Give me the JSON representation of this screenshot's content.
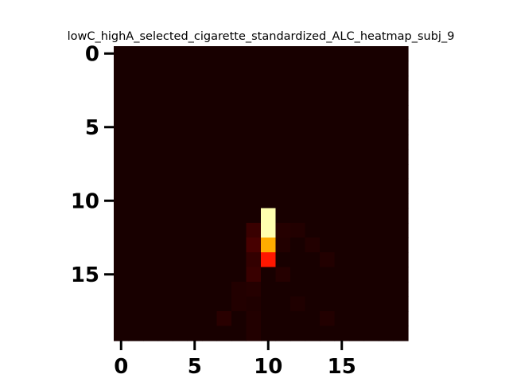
{
  "chart_data": {
    "type": "heatmap",
    "title": "lowC_highA_selected_cigarette_standardized_ALC_heatmap_subj_9",
    "xlabel": "",
    "ylabel": "",
    "colormap": "hot",
    "rows": 20,
    "cols": 20,
    "vmin": 0,
    "vmax": 1,
    "xticks": [
      0,
      5,
      10,
      15
    ],
    "yticks": [
      0,
      5,
      10,
      15
    ],
    "xtick_labels": [
      "0",
      "5",
      "10",
      "15"
    ],
    "ytick_labels": [
      "0",
      "5",
      "10",
      "15"
    ],
    "grid": false,
    "background_value": 0.02,
    "cells": [
      {
        "row": 11,
        "col": 10,
        "value": 0.92
      },
      {
        "row": 12,
        "col": 10,
        "value": 0.92
      },
      {
        "row": 13,
        "col": 10,
        "value": 0.62
      },
      {
        "row": 14,
        "col": 10,
        "value": 0.4
      },
      {
        "row": 12,
        "col": 9,
        "value": 0.07
      },
      {
        "row": 13,
        "col": 9,
        "value": 0.09
      },
      {
        "row": 14,
        "col": 9,
        "value": 0.06
      },
      {
        "row": 15,
        "col": 9,
        "value": 0.07
      },
      {
        "row": 12,
        "col": 11,
        "value": 0.04
      },
      {
        "row": 12,
        "col": 12,
        "value": 0.035
      },
      {
        "row": 13,
        "col": 11,
        "value": 0.035
      },
      {
        "row": 13,
        "col": 13,
        "value": 0.035
      },
      {
        "row": 14,
        "col": 14,
        "value": 0.035
      },
      {
        "row": 15,
        "col": 11,
        "value": 0.04
      },
      {
        "row": 16,
        "col": 9,
        "value": 0.04
      },
      {
        "row": 16,
        "col": 8,
        "value": 0.035
      },
      {
        "row": 17,
        "col": 8,
        "value": 0.035
      },
      {
        "row": 17,
        "col": 9,
        "value": 0.03
      },
      {
        "row": 17,
        "col": 12,
        "value": 0.03
      },
      {
        "row": 18,
        "col": 7,
        "value": 0.045
      },
      {
        "row": 18,
        "col": 9,
        "value": 0.035
      },
      {
        "row": 18,
        "col": 14,
        "value": 0.035
      },
      {
        "row": 19,
        "col": 9,
        "value": 0.035
      }
    ]
  }
}
